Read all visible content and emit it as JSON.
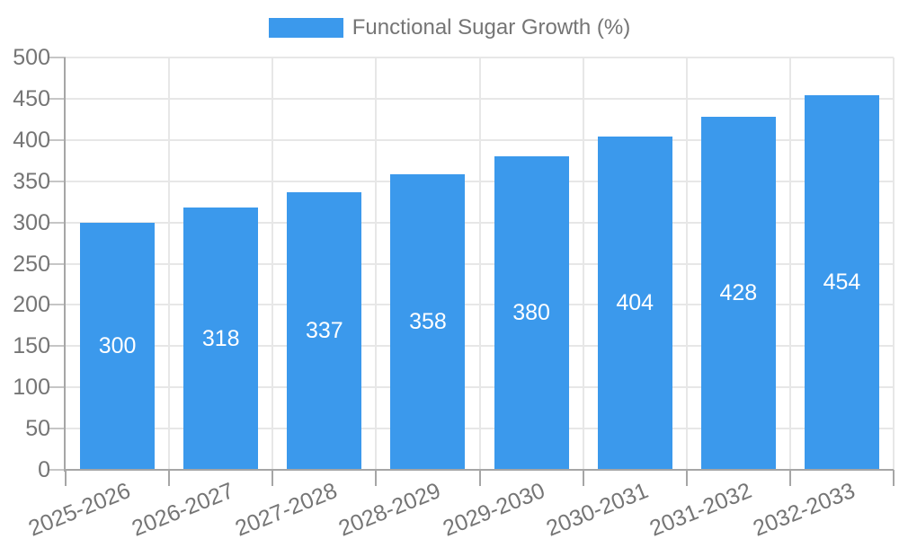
{
  "chart_data": {
    "type": "bar",
    "title": "Functional Sugar Growth (%)",
    "categories": [
      "2025-2026",
      "2026-2027",
      "2027-2028",
      "2028-2029",
      "2029-2030",
      "2030-2031",
      "2031-2032",
      "2032-2033"
    ],
    "values": [
      300,
      318,
      337,
      358,
      380,
      404,
      428,
      454
    ],
    "bar_labels": [
      "300",
      "318",
      "337",
      "358",
      "380",
      "404",
      "428",
      "454"
    ],
    "xlabel": "",
    "ylabel": "",
    "ylim": [
      0,
      500
    ],
    "ytick_step": 50,
    "yticks": [
      0,
      50,
      100,
      150,
      200,
      250,
      300,
      350,
      400,
      450,
      500
    ],
    "grid": true,
    "legend_position": "top-center",
    "bar_value_labels_inside": true,
    "colors": {
      "bar": "#3b99ec",
      "bar_label": "#ffffff",
      "axis_text": "#757575",
      "grid_line": "#e7e7e7",
      "axis_line": "#a6a6a6",
      "tick_line": "#c6c6c6"
    }
  }
}
